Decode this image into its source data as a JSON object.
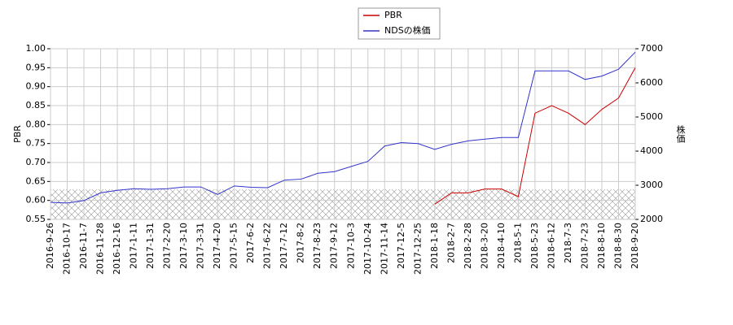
{
  "chart_data": {
    "type": "line",
    "categories": [
      "2016-9-26",
      "2016-10-17",
      "2016-11-7",
      "2016-11-28",
      "2016-12-16",
      "2017-1-11",
      "2017-1-31",
      "2017-2-20",
      "2017-3-10",
      "2017-3-31",
      "2017-4-20",
      "2017-5-15",
      "2017-6-2",
      "2017-6-22",
      "2017-7-12",
      "2017-8-2",
      "2017-8-23",
      "2017-9-12",
      "2017-10-3",
      "2017-10-24",
      "2017-11-14",
      "2017-12-5",
      "2017-12-25",
      "2018-1-18",
      "2018-2-7",
      "2018-2-28",
      "2018-3-20",
      "2018-4-10",
      "2018-5-1",
      "2018-5-23",
      "2018-6-12",
      "2018-7-3",
      "2018-7-23",
      "2018-8-10",
      "2018-8-30",
      "2018-9-20"
    ],
    "y_label": "PBR",
    "y2_label": "株価",
    "ylim": [
      0.55,
      1.0
    ],
    "yticks": [
      0.55,
      {
        "value": 0.6,
        "label": "0.60"
      },
      0.65,
      {
        "value": 0.7,
        "label": "0.70"
      },
      0.75,
      {
        "value": 0.8,
        "label": "0.80"
      },
      0.85,
      {
        "value": 0.9,
        "label": "0.90"
      },
      0.95,
      {
        "value": 1.0,
        "label": "1.00"
      }
    ],
    "y2lim": [
      2000,
      7000
    ],
    "y2ticks": [
      2000,
      3000,
      4000,
      5000,
      6000,
      7000
    ],
    "series": [
      {
        "name": "PBR",
        "color": "#cc0000",
        "values": [
          null,
          null,
          null,
          null,
          null,
          null,
          null,
          null,
          null,
          null,
          null,
          null,
          null,
          null,
          null,
          null,
          null,
          null,
          null,
          null,
          null,
          null,
          null,
          0.59,
          0.62,
          0.62,
          0.63,
          0.63,
          0.61,
          0.83,
          0.85,
          0.83,
          0.8,
          0.84,
          0.87,
          0.95
        ]
      },
      {
        "name": "NDSの株価",
        "color": "#3333cc",
        "axis": "y2",
        "values": [
          2500,
          2480,
          2550,
          2780,
          2850,
          2900,
          2880,
          2900,
          2950,
          2950,
          2730,
          2980,
          2940,
          2930,
          3150,
          3180,
          3350,
          3400,
          3550,
          3700,
          4150,
          4250,
          4220,
          4050,
          4200,
          4300,
          4350,
          4400,
          4400,
          6350,
          6350,
          6350,
          6100,
          6200,
          6400,
          6900
        ]
      }
    ]
  }
}
